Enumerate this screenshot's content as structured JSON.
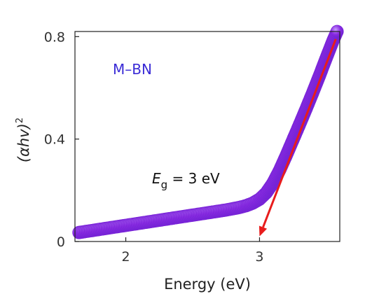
{
  "chart_data": {
    "type": "scatter",
    "title": "",
    "xlabel": "Energy (eV)",
    "ylabel_base": "(αhv)",
    "ylabel_exponent": "2",
    "xlim": [
      1.62,
      3.6
    ],
    "ylim": [
      0,
      0.82
    ],
    "xticks": [
      2,
      3
    ],
    "xtick_labels": [
      "2",
      "3"
    ],
    "yticks": [
      0,
      0.4,
      0.8
    ],
    "ytick_labels": [
      "0",
      "0.4",
      "0.8"
    ],
    "grid": false,
    "series": [
      {
        "name": "M–BN",
        "color": "#8a2be2",
        "x": [
          1.65,
          1.7,
          1.75,
          1.8,
          1.85,
          1.9,
          1.95,
          2.0,
          2.05,
          2.1,
          2.15,
          2.2,
          2.25,
          2.3,
          2.35,
          2.4,
          2.45,
          2.5,
          2.55,
          2.6,
          2.65,
          2.7,
          2.75,
          2.8,
          2.85,
          2.9,
          2.95,
          3.0,
          3.05,
          3.1,
          3.15,
          3.2,
          3.25,
          3.3,
          3.35,
          3.4,
          3.45,
          3.5,
          3.55,
          3.58
        ],
        "y": [
          0.035,
          0.039,
          0.043,
          0.047,
          0.051,
          0.055,
          0.059,
          0.063,
          0.067,
          0.071,
          0.075,
          0.079,
          0.083,
          0.087,
          0.091,
          0.095,
          0.099,
          0.103,
          0.107,
          0.111,
          0.115,
          0.119,
          0.123,
          0.128,
          0.133,
          0.14,
          0.15,
          0.165,
          0.19,
          0.228,
          0.278,
          0.336,
          0.397,
          0.458,
          0.52,
          0.584,
          0.65,
          0.718,
          0.785,
          0.82
        ]
      }
    ],
    "annotation": {
      "symbol": "E",
      "subscript": "g",
      "text": " = 3 eV"
    },
    "arrow": {
      "from": [
        3.57,
        0.79
      ],
      "to": [
        3.0,
        0.02
      ],
      "color": "#e81c1c"
    }
  }
}
